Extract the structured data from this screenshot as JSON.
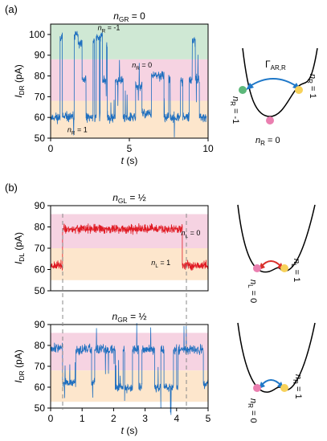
{
  "colors": {
    "blue_trace": "#1f6fbf",
    "red_trace": "#e01b24",
    "green_band": "#cfe8d4",
    "pink_band": "#f6d3e2",
    "orange_band": "#fde6cc",
    "dot_green": "#5cb87a",
    "dot_pink": "#ea7fb0",
    "dot_yellow": "#f7d25a",
    "arrow_blue": "#1f78c8",
    "arrow_red": "#d9302b"
  },
  "panels": {
    "a": {
      "label": "(a)"
    },
    "b": {
      "label": "(b)"
    }
  },
  "diagrams": {
    "a": {
      "gamma_main": "Γ",
      "gamma_sub": "AR,R",
      "left_dot": "n",
      "left_sub": "R",
      "left_val": " = -1",
      "right_dot": "n",
      "right_sub": "R",
      "right_val": " = 1",
      "bottom_dot": "n",
      "bottom_sub": "R",
      "bottom_val": " = 0"
    },
    "b1": {
      "left_dot": "n",
      "left_sub": "L",
      "left_val": " = 0",
      "right_dot": "n",
      "right_sub": "L",
      "right_val": " = 1"
    },
    "b2": {
      "left_dot": "n",
      "left_sub": "R",
      "left_val": " = 0",
      "right_dot": "n",
      "right_sub": "R",
      "right_val": " = 1"
    }
  },
  "chart_data": [
    {
      "type": "line",
      "panel": "a",
      "title": {
        "main": "n",
        "sub": "GR",
        "rest": " = 0"
      },
      "ylabel": {
        "main": "I",
        "sub": "DR",
        "rest": " (pA)"
      },
      "xlabel": {
        "main": "t",
        "rest": " (s)"
      },
      "xlim": [
        0,
        10
      ],
      "ylim": [
        50,
        105
      ],
      "xticks": [
        0,
        5,
        10
      ],
      "yticks": [
        50,
        60,
        70,
        80,
        90,
        100
      ],
      "bands": [
        {
          "from": 88,
          "to": 105,
          "color": "green",
          "label": {
            "main": "n",
            "sub": "R",
            "rest": " = -1"
          },
          "label_at": [
            3.7,
            102
          ]
        },
        {
          "from": 68,
          "to": 88,
          "color": "pink",
          "label": {
            "main": "n",
            "sub": "R",
            "rest": " = 0"
          },
          "label_at": [
            5.8,
            84
          ]
        },
        {
          "from": 50,
          "to": 68,
          "color": "orange",
          "label": {
            "main": "n",
            "sub": "R",
            "rest": " = 1"
          },
          "label_at": [
            1.7,
            53
          ]
        }
      ],
      "series": [
        {
          "color": "blue",
          "level_noise": 1.8,
          "spike_rate": 0.02,
          "seed": 11,
          "points": [
            [
              0.0,
              60
            ],
            [
              0.6,
              60
            ],
            [
              0.6,
              99
            ],
            [
              0.75,
              99
            ],
            [
              0.75,
              60
            ],
            [
              1.5,
              60
            ],
            [
              1.5,
              100
            ],
            [
              1.75,
              100
            ],
            [
              1.75,
              95
            ],
            [
              2.0,
              95
            ],
            [
              2.0,
              78
            ],
            [
              2.25,
              78
            ],
            [
              2.25,
              60
            ],
            [
              2.7,
              60
            ],
            [
              2.7,
              97
            ],
            [
              2.8,
              97
            ],
            [
              2.8,
              60
            ],
            [
              2.9,
              60
            ],
            [
              2.9,
              99
            ],
            [
              3.1,
              99
            ],
            [
              3.1,
              60
            ],
            [
              3.15,
              60
            ],
            [
              3.15,
              99
            ],
            [
              3.3,
              99
            ],
            [
              3.3,
              78
            ],
            [
              3.55,
              78
            ],
            [
              3.55,
              95
            ],
            [
              3.6,
              95
            ],
            [
              3.6,
              60
            ],
            [
              4.1,
              60
            ],
            [
              4.1,
              78
            ],
            [
              4.6,
              78
            ],
            [
              4.6,
              60
            ],
            [
              5.4,
              60
            ],
            [
              5.4,
              75
            ],
            [
              5.8,
              75
            ],
            [
              5.8,
              62
            ],
            [
              6.4,
              62
            ],
            [
              6.4,
              80
            ],
            [
              7.2,
              80
            ],
            [
              7.2,
              60
            ],
            [
              7.5,
              60
            ],
            [
              7.5,
              78
            ],
            [
              7.6,
              78
            ],
            [
              7.6,
              60
            ],
            [
              8.25,
              60
            ],
            [
              8.25,
              78
            ],
            [
              8.4,
              78
            ],
            [
              8.4,
              60
            ],
            [
              8.8,
              60
            ],
            [
              8.8,
              78
            ],
            [
              9.0,
              78
            ],
            [
              9.0,
              97
            ],
            [
              9.2,
              97
            ],
            [
              9.2,
              78
            ],
            [
              9.45,
              78
            ],
            [
              9.45,
              60
            ],
            [
              9.9,
              60
            ]
          ]
        }
      ]
    },
    {
      "type": "line",
      "panel": "b-top",
      "title": {
        "main": "n",
        "sub": "GL",
        "rest": " = ½"
      },
      "ylabel": {
        "main": "I",
        "sub": "DL",
        "rest": " (pA)"
      },
      "xlabel": null,
      "xlim": [
        0,
        5
      ],
      "ylim": [
        50,
        90
      ],
      "xticks": [],
      "yticks": [
        50,
        60,
        70,
        80,
        90
      ],
      "bands": [
        {
          "from": 70,
          "to": 86,
          "color": "pink",
          "label": {
            "main": "n",
            "sub": "L",
            "rest": " = 0"
          },
          "label_at": [
            4.45,
            76
          ]
        },
        {
          "from": 55,
          "to": 70,
          "color": "orange",
          "label": {
            "main": "n",
            "sub": "L",
            "rest": " = 1"
          },
          "label_at": [
            3.5,
            62
          ]
        }
      ],
      "series": [
        {
          "color": "red",
          "level_noise": 1.6,
          "spike_rate": 0.0,
          "seed": 23,
          "points": [
            [
              0.0,
              62
            ],
            [
              0.38,
              62
            ],
            [
              0.38,
              79
            ],
            [
              4.18,
              79
            ],
            [
              4.18,
              62
            ],
            [
              5.0,
              62
            ]
          ]
        }
      ]
    },
    {
      "type": "line",
      "panel": "b-bottom",
      "title": {
        "main": "n",
        "sub": "GR",
        "rest": " = ½"
      },
      "ylabel": {
        "main": "I",
        "sub": "DR",
        "rest": " (pA)"
      },
      "xlabel": {
        "main": "t",
        "rest": " (s)"
      },
      "xlim": [
        0,
        5
      ],
      "ylim": [
        50,
        90
      ],
      "xticks": [
        0,
        1,
        2,
        3,
        4,
        5
      ],
      "yticks": [
        50,
        60,
        70,
        80,
        90
      ],
      "bands": [
        {
          "from": 68,
          "to": 86,
          "color": "pink"
        },
        {
          "from": 53,
          "to": 68,
          "color": "orange"
        }
      ],
      "series": [
        {
          "color": "blue",
          "level_noise": 1.7,
          "spike_rate": 0.03,
          "seed": 37,
          "points": [
            [
              0.0,
              79
            ],
            [
              0.38,
              79
            ],
            [
              0.38,
              62
            ],
            [
              0.8,
              62
            ],
            [
              0.8,
              78
            ],
            [
              1.3,
              78
            ],
            [
              1.3,
              62
            ],
            [
              1.4,
              62
            ],
            [
              1.4,
              78
            ],
            [
              2.05,
              78
            ],
            [
              2.05,
              60
            ],
            [
              2.3,
              60
            ],
            [
              2.3,
              78
            ],
            [
              2.35,
              78
            ],
            [
              2.35,
              60
            ],
            [
              2.6,
              60
            ],
            [
              2.6,
              78
            ],
            [
              2.8,
              78
            ],
            [
              2.8,
              60
            ],
            [
              2.9,
              60
            ],
            [
              2.9,
              78
            ],
            [
              3.3,
              78
            ],
            [
              3.3,
              60
            ],
            [
              3.5,
              60
            ],
            [
              3.5,
              78
            ],
            [
              3.6,
              78
            ],
            [
              3.6,
              60
            ],
            [
              3.9,
              60
            ],
            [
              3.9,
              78
            ],
            [
              4.0,
              78
            ],
            [
              4.0,
              60
            ],
            [
              4.05,
              60
            ],
            [
              4.05,
              78
            ],
            [
              4.85,
              78
            ],
            [
              4.85,
              62
            ],
            [
              5.0,
              62
            ]
          ]
        }
      ]
    }
  ]
}
